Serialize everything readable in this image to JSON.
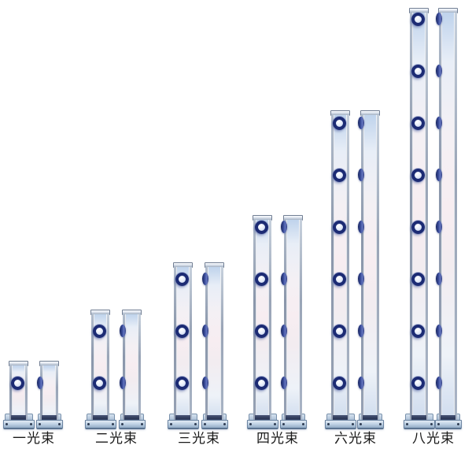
{
  "background": "#ffffff",
  "products": [
    {
      "label": "一光束",
      "beams": 1
    },
    {
      "label": "二光束",
      "beams": 2
    },
    {
      "label": "三光束",
      "beams": 3
    },
    {
      "label": "四光束",
      "beams": 4
    },
    {
      "label": "六光束",
      "beams": 6
    },
    {
      "label": "八光束",
      "beams": 8
    }
  ],
  "colors": {
    "lens_ring": "#1c2b74",
    "lens_inner": "#e8eefb",
    "side_bump_dark": "#16235e",
    "side_bump_light": "#6678c0",
    "tower_body_blue": "#bfd3ec",
    "tower_body_pink": "#f7edf1",
    "tower_rail_gray": "#8b97ab",
    "cap_silver": "#dde4ee",
    "base_plate_blue": "#c2d4e6",
    "base_edge": "#6b84a1",
    "slot_dark": "#2c3756",
    "label_text": "#1a1a1a",
    "background": "#ffffff"
  }
}
